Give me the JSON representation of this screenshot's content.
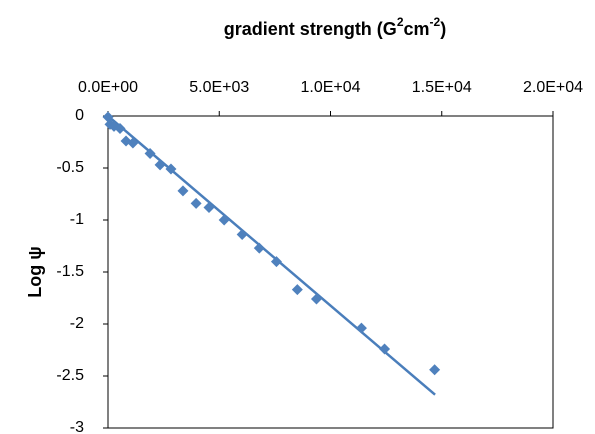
{
  "chart_data": {
    "type": "scatter",
    "title": [
      "gradient  strength  (G",
      "2",
      "cm",
      "-2",
      ")"
    ],
    "y_label": "Log  ψ",
    "xlim": [
      0,
      20000
    ],
    "xticks": [
      {
        "value": 0,
        "label": "0.0E+00"
      },
      {
        "value": 5000,
        "label": "5.0E+03"
      },
      {
        "value": 10000,
        "label": "1.0E+04"
      },
      {
        "value": 15000,
        "label": "1.5E+04"
      },
      {
        "value": 20000,
        "label": "2.0E+04"
      }
    ],
    "ylim": [
      -3,
      0
    ],
    "yticks": [
      0,
      -0.5,
      -1,
      -1.5,
      -2,
      -2.5,
      -3
    ],
    "series": [
      {
        "color": "#4f81bd",
        "x": [
          0,
          90,
          270,
          540,
          810,
          1120,
          1890,
          2340,
          2830,
          3370,
          3960,
          4540,
          5220,
          6030,
          6800,
          7570,
          8510,
          9370,
          11390,
          12430,
          14680
        ],
        "values": [
          -0.01,
          -0.08,
          -0.1,
          -0.12,
          -0.24,
          -0.26,
          -0.36,
          -0.47,
          -0.51,
          -0.72,
          -0.84,
          -0.88,
          -1.0,
          -1.14,
          -1.27,
          -1.4,
          -1.67,
          -1.76,
          -2.04,
          -2.24,
          -2.44
        ]
      }
    ],
    "trendline": {
      "color": "#4a7ebb",
      "x": [
        0,
        14700
      ],
      "values": [
        0,
        -2.68
      ]
    }
  }
}
